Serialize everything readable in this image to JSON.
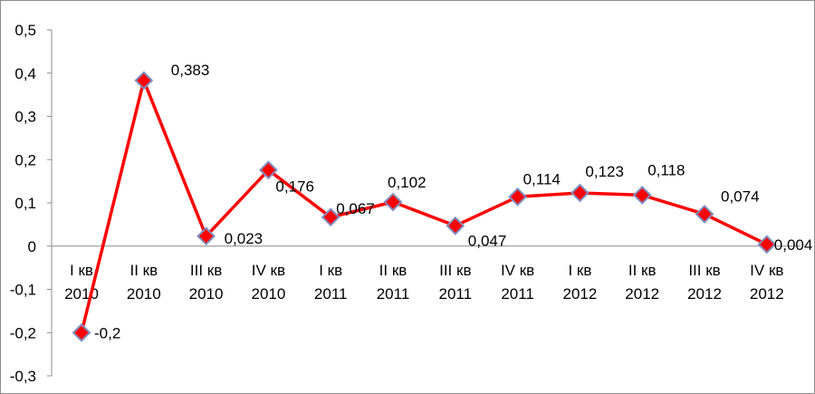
{
  "chart_data": {
    "type": "line",
    "title": "",
    "xlabel": "",
    "ylabel": "",
    "categories": [
      [
        "I кв",
        "2010"
      ],
      [
        "II кв",
        "2010"
      ],
      [
        "III кв",
        "2010"
      ],
      [
        "IV кв",
        "2010"
      ],
      [
        "I кв",
        "2011"
      ],
      [
        "II кв",
        "2011"
      ],
      [
        "III кв",
        "2011"
      ],
      [
        "IV кв",
        "2011"
      ],
      [
        "I кв",
        "2012"
      ],
      [
        "II кв",
        "2012"
      ],
      [
        "III кв",
        "2012"
      ],
      [
        "IV кв",
        "2012"
      ]
    ],
    "series": [
      {
        "values": [
          -0.2,
          0.383,
          0.023,
          0.176,
          0.067,
          0.102,
          0.047,
          0.114,
          0.123,
          0.118,
          0.074,
          0.004
        ],
        "labels": [
          "-0,2",
          "0,383",
          "0,023",
          "0,176",
          "0,067",
          "0,102",
          "0,047",
          "0,114",
          "0,123",
          "0,118",
          "0,074",
          "0,004"
        ],
        "line_color": "#ff0000",
        "marker": "diamond",
        "marker_fill": "#ff0000",
        "marker_edge": "#7f8fbf"
      }
    ],
    "ylim": [
      -0.3,
      0.5
    ],
    "yticks": [
      0.5,
      0.4,
      0.3,
      0.2,
      0.1,
      0,
      -0.1,
      -0.2,
      -0.3
    ],
    "ytick_labels": [
      "0,5",
      "0,4",
      "0,3",
      "0,2",
      "0,1",
      "0",
      "-0,1",
      "-0,2",
      "-0,3"
    ],
    "grid": false,
    "legend": "none"
  }
}
